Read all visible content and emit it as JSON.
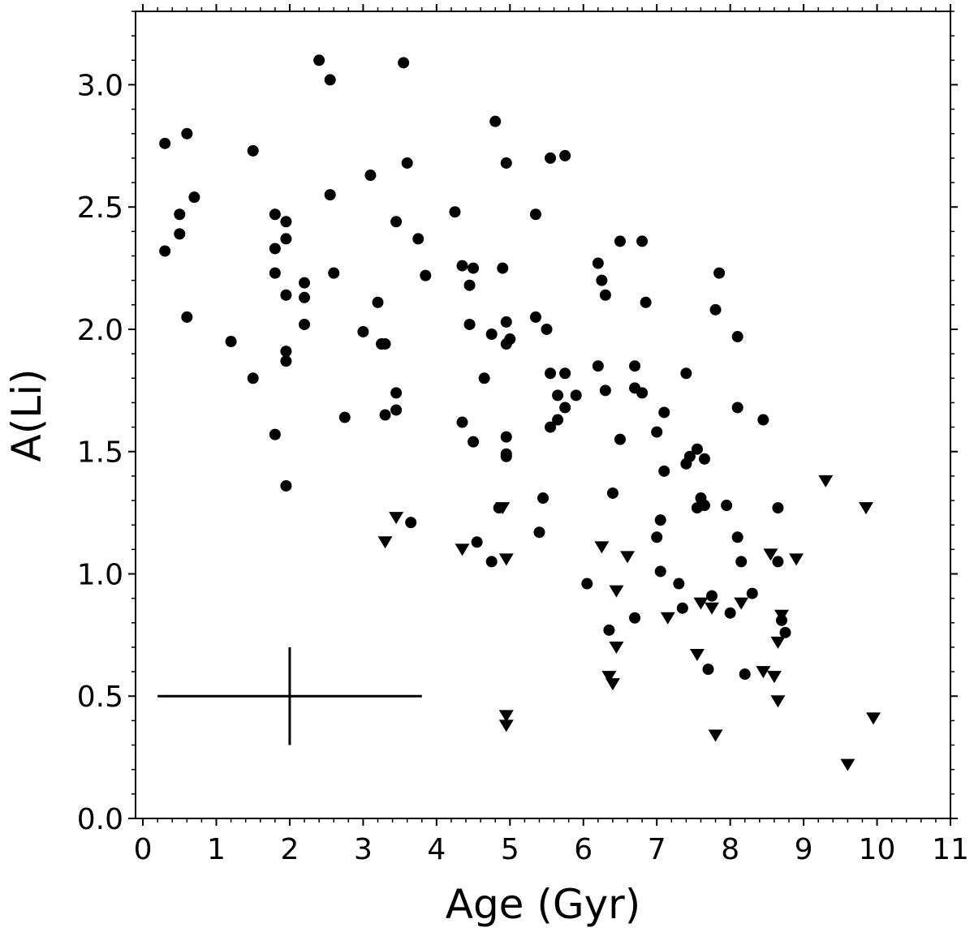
{
  "chart_data": {
    "type": "scatter",
    "xlabel": "Age (Gyr)",
    "ylabel": "A(Li)",
    "xlim": [
      -0.1,
      11
    ],
    "ylim": [
      0,
      3.3
    ],
    "xticks": [
      "0",
      "1",
      "2",
      "3",
      "4",
      "5",
      "6",
      "7",
      "8",
      "9",
      "10",
      "11"
    ],
    "yticks": [
      "0.0",
      "0.5",
      "1.0",
      "1.5",
      "2.0",
      "2.5",
      "3.0"
    ],
    "grid": false,
    "legend": "none",
    "marker_color": "#000000",
    "series": [
      {
        "marker": "circle",
        "points": [
          [
            0.3,
            2.76
          ],
          [
            0.3,
            2.32
          ],
          [
            0.5,
            2.47
          ],
          [
            0.5,
            2.39
          ],
          [
            0.6,
            2.8
          ],
          [
            0.6,
            2.05
          ],
          [
            0.7,
            2.54
          ],
          [
            1.2,
            1.95
          ],
          [
            1.5,
            2.73
          ],
          [
            1.5,
            1.8
          ],
          [
            1.8,
            2.47
          ],
          [
            1.8,
            2.33
          ],
          [
            1.8,
            2.23
          ],
          [
            1.8,
            1.57
          ],
          [
            1.95,
            2.44
          ],
          [
            1.95,
            2.37
          ],
          [
            1.95,
            2.14
          ],
          [
            1.95,
            1.91
          ],
          [
            1.95,
            1.87
          ],
          [
            1.95,
            1.36
          ],
          [
            2.2,
            2.19
          ],
          [
            2.2,
            2.13
          ],
          [
            2.2,
            2.02
          ],
          [
            2.4,
            3.1
          ],
          [
            2.55,
            3.02
          ],
          [
            2.55,
            2.55
          ],
          [
            2.6,
            2.23
          ],
          [
            2.75,
            1.64
          ],
          [
            3.0,
            1.99
          ],
          [
            3.1,
            2.63
          ],
          [
            3.2,
            2.11
          ],
          [
            3.25,
            1.94
          ],
          [
            3.3,
            1.94
          ],
          [
            3.3,
            1.65
          ],
          [
            3.45,
            2.44
          ],
          [
            3.45,
            1.74
          ],
          [
            3.45,
            1.67
          ],
          [
            3.55,
            3.09
          ],
          [
            3.6,
            2.68
          ],
          [
            3.65,
            1.21
          ],
          [
            3.75,
            2.37
          ],
          [
            3.85,
            2.22
          ],
          [
            4.25,
            2.48
          ],
          [
            4.35,
            2.26
          ],
          [
            4.35,
            1.62
          ],
          [
            4.45,
            2.02
          ],
          [
            4.45,
            2.18
          ],
          [
            4.5,
            2.25
          ],
          [
            4.5,
            1.54
          ],
          [
            4.55,
            1.13
          ],
          [
            4.65,
            1.8
          ],
          [
            4.75,
            1.98
          ],
          [
            4.75,
            1.05
          ],
          [
            4.8,
            2.85
          ],
          [
            4.85,
            1.27
          ],
          [
            4.9,
            2.25
          ],
          [
            4.95,
            2.68
          ],
          [
            4.95,
            2.03
          ],
          [
            4.95,
            1.94
          ],
          [
            4.95,
            1.56
          ],
          [
            4.95,
            1.49
          ],
          [
            4.95,
            1.48
          ],
          [
            5.0,
            1.96
          ],
          [
            5.35,
            2.47
          ],
          [
            5.35,
            2.05
          ],
          [
            5.4,
            1.17
          ],
          [
            5.45,
            1.31
          ],
          [
            5.5,
            2.0
          ],
          [
            5.55,
            2.7
          ],
          [
            5.55,
            1.82
          ],
          [
            5.55,
            1.6
          ],
          [
            5.65,
            1.63
          ],
          [
            5.65,
            1.73
          ],
          [
            5.75,
            2.71
          ],
          [
            5.75,
            1.82
          ],
          [
            5.75,
            1.68
          ],
          [
            5.9,
            1.73
          ],
          [
            6.05,
            0.96
          ],
          [
            6.2,
            2.27
          ],
          [
            6.2,
            1.85
          ],
          [
            6.25,
            2.2
          ],
          [
            6.3,
            1.75
          ],
          [
            6.3,
            2.14
          ],
          [
            6.35,
            0.77
          ],
          [
            6.4,
            1.33
          ],
          [
            6.5,
            2.36
          ],
          [
            6.5,
            1.55
          ],
          [
            6.7,
            1.85
          ],
          [
            6.7,
            1.76
          ],
          [
            6.7,
            0.82
          ],
          [
            6.8,
            2.36
          ],
          [
            6.8,
            1.74
          ],
          [
            6.85,
            2.11
          ],
          [
            7.0,
            1.58
          ],
          [
            7.0,
            1.15
          ],
          [
            7.05,
            1.22
          ],
          [
            7.05,
            1.01
          ],
          [
            7.1,
            1.66
          ],
          [
            7.1,
            1.42
          ],
          [
            7.3,
            0.96
          ],
          [
            7.35,
            0.86
          ],
          [
            7.4,
            1.82
          ],
          [
            7.4,
            1.45
          ],
          [
            7.45,
            1.48
          ],
          [
            7.55,
            1.51
          ],
          [
            7.55,
            1.27
          ],
          [
            7.6,
            1.31
          ],
          [
            7.65,
            1.47
          ],
          [
            7.65,
            1.28
          ],
          [
            7.7,
            0.61
          ],
          [
            7.75,
            0.91
          ],
          [
            7.8,
            2.08
          ],
          [
            7.85,
            2.23
          ],
          [
            7.95,
            1.28
          ],
          [
            8.0,
            0.84
          ],
          [
            8.1,
            1.97
          ],
          [
            8.1,
            1.68
          ],
          [
            8.1,
            1.15
          ],
          [
            8.15,
            1.05
          ],
          [
            8.2,
            0.59
          ],
          [
            8.3,
            0.92
          ],
          [
            8.45,
            1.63
          ],
          [
            8.65,
            1.27
          ],
          [
            8.65,
            1.05
          ],
          [
            8.7,
            0.81
          ],
          [
            8.75,
            0.76
          ]
        ]
      },
      {
        "marker": "triangle-down",
        "points": [
          [
            3.3,
            1.13
          ],
          [
            3.45,
            1.23
          ],
          [
            4.35,
            1.1
          ],
          [
            4.9,
            1.27
          ],
          [
            4.95,
            1.06
          ],
          [
            4.95,
            0.42
          ],
          [
            4.95,
            0.38
          ],
          [
            6.25,
            1.11
          ],
          [
            6.35,
            0.58
          ],
          [
            6.4,
            0.55
          ],
          [
            6.45,
            0.93
          ],
          [
            6.45,
            0.7
          ],
          [
            6.6,
            1.07
          ],
          [
            7.15,
            0.82
          ],
          [
            7.55,
            0.67
          ],
          [
            7.6,
            0.88
          ],
          [
            7.75,
            0.86
          ],
          [
            7.8,
            0.34
          ],
          [
            8.15,
            0.88
          ],
          [
            8.45,
            0.6
          ],
          [
            8.55,
            1.08
          ],
          [
            8.6,
            0.58
          ],
          [
            8.65,
            0.72
          ],
          [
            8.65,
            0.48
          ],
          [
            8.7,
            0.83
          ],
          [
            8.9,
            1.06
          ],
          [
            9.3,
            1.38
          ],
          [
            9.6,
            0.22
          ],
          [
            9.85,
            1.27
          ],
          [
            9.95,
            0.41
          ]
        ]
      }
    ],
    "error_bar": {
      "x": 2,
      "y": 0.5,
      "x_low": 0.2,
      "x_high": 3.8,
      "y_low": 0.3,
      "y_high": 0.7
    }
  }
}
